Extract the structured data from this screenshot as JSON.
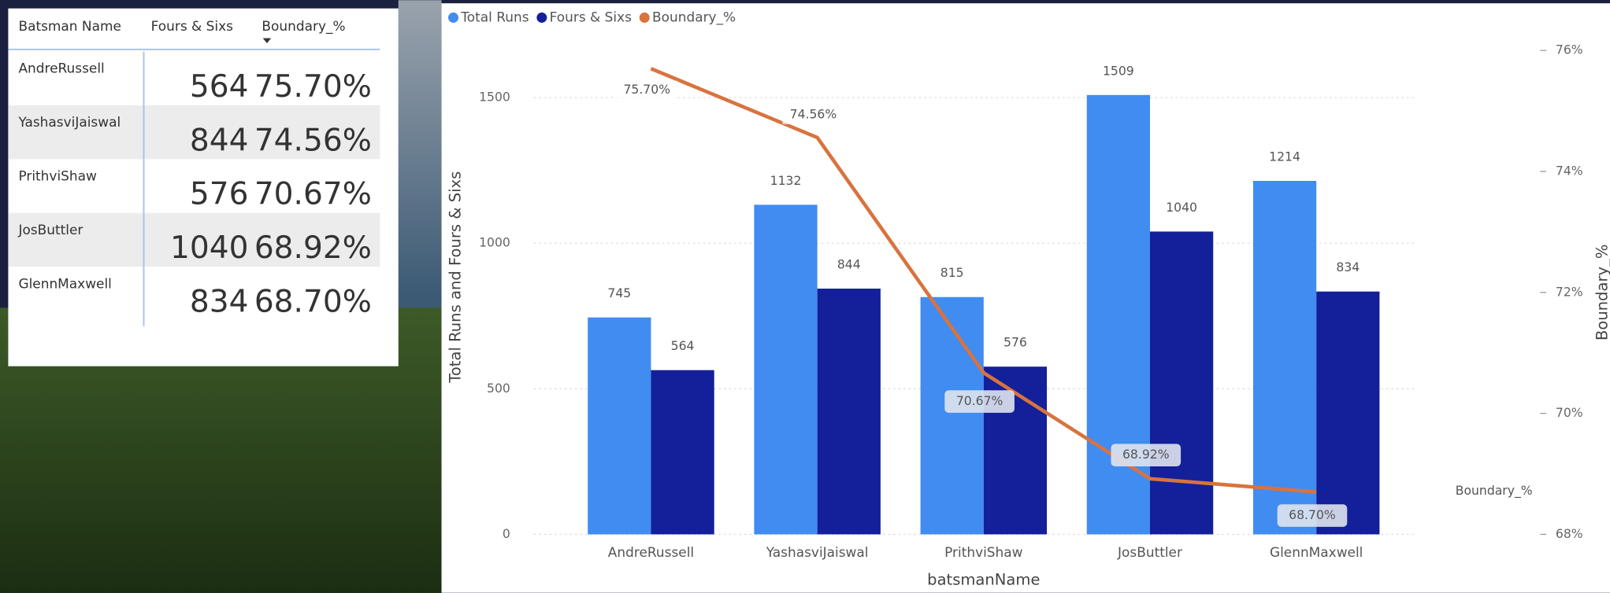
{
  "table": {
    "columns": [
      "Batsman Name",
      "Fours & Sixs",
      "Boundary_%"
    ],
    "rows": [
      [
        "AndreRussell",
        "564",
        "75.70%"
      ],
      [
        "YashasviJaiswal",
        "844",
        "74.56%"
      ],
      [
        "PrithviShaw",
        "576",
        "70.67%"
      ],
      [
        "JosButtler",
        "1040",
        "68.92%"
      ],
      [
        "GlennMaxwell",
        "834",
        "68.70%"
      ]
    ]
  },
  "chart_data": {
    "type": "bar",
    "x_label": "batsmanName",
    "y_label": "Total Runs and Fours & Sixs",
    "y2_label": "Boundary_%",
    "line_end_label": "Boundary_%",
    "categories": [
      "AndreRussell",
      "YashasviJaiswal",
      "PrithviShaw",
      "JosButtler",
      "GlennMaxwell"
    ],
    "series": [
      {
        "name": "Total Runs",
        "type": "bar",
        "color": "#418cf0",
        "values": [
          745,
          1132,
          815,
          1509,
          1214
        ]
      },
      {
        "name": "Fours & Sixs",
        "type": "bar",
        "color": "#13209a",
        "values": [
          564,
          844,
          576,
          1040,
          834
        ]
      },
      {
        "name": "Boundary_%",
        "type": "line",
        "axis": "y2",
        "color": "#d8733f",
        "values": [
          75.7,
          74.56,
          70.67,
          68.92,
          68.7
        ],
        "value_labels": [
          "75.70%",
          "74.56%",
          "70.67%",
          "68.92%",
          "68.70%"
        ]
      }
    ],
    "ylim": [
      0,
      1662
    ],
    "yticks": [
      0,
      500,
      1000,
      1500
    ],
    "y2lim": [
      68,
      76
    ],
    "y2ticks": [
      {
        "value": 68,
        "label": "68%"
      },
      {
        "value": 70,
        "label": "70%"
      },
      {
        "value": 72,
        "label": "72%"
      },
      {
        "value": 74,
        "label": "74%"
      },
      {
        "value": 76,
        "label": "76%"
      }
    ],
    "grid": true
  }
}
